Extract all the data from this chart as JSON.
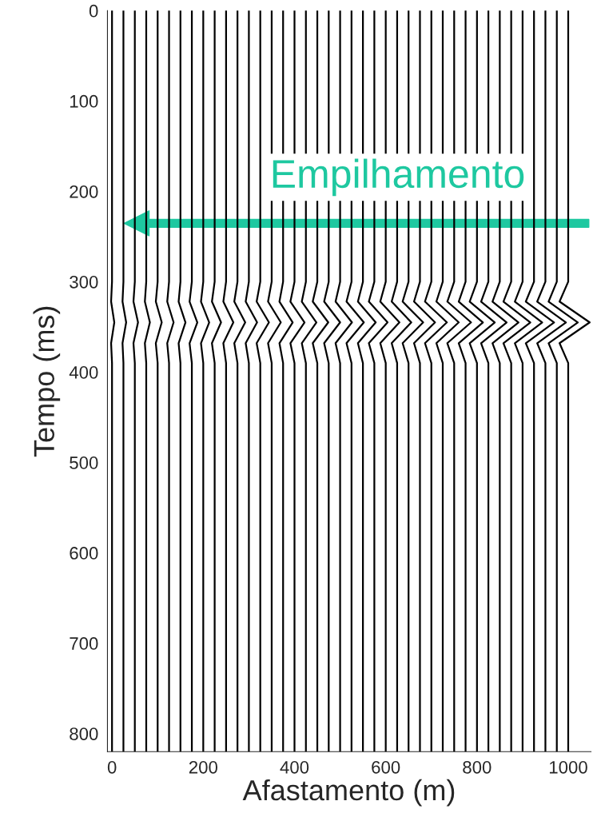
{
  "chart_data": {
    "type": "line",
    "xlabel": "Afastamento (m)",
    "ylabel": "Tempo (ms)",
    "annotations": [
      "Empilhamento"
    ],
    "xlim": [
      -10,
      1050
    ],
    "ylim": [
      820,
      0
    ],
    "xticks": [
      0,
      200,
      400,
      600,
      800,
      1000
    ],
    "yticks": [
      0,
      100,
      200,
      300,
      400,
      500,
      600,
      700,
      800
    ],
    "grid": false,
    "legend": false,
    "series": [
      {
        "color": "#000000",
        "x": [
          0,
          0,
          -2,
          5,
          -2,
          0,
          0
        ],
        "values": [
          0,
          300,
          322,
          345,
          368,
          390,
          820
        ]
      },
      {
        "color": "#000000",
        "x": [
          25,
          25,
          23,
          31,
          23,
          25,
          25
        ],
        "values": [
          0,
          300,
          322,
          345,
          368,
          390,
          820
        ]
      },
      {
        "color": "#000000",
        "x": [
          50,
          50,
          47,
          57,
          47,
          50,
          50
        ],
        "values": [
          0,
          300,
          322,
          345,
          368,
          390,
          820
        ]
      },
      {
        "color": "#000000",
        "x": [
          75,
          75,
          72,
          83,
          72,
          75,
          75
        ],
        "values": [
          0,
          300,
          322,
          345,
          368,
          390,
          820
        ]
      },
      {
        "color": "#000000",
        "x": [
          100,
          100,
          96,
          109,
          96,
          100,
          100
        ],
        "values": [
          0,
          300,
          322,
          345,
          368,
          390,
          820
        ]
      },
      {
        "color": "#000000",
        "x": [
          125,
          125,
          121,
          135,
          121,
          125,
          125
        ],
        "values": [
          0,
          300,
          322,
          345,
          368,
          390,
          820
        ]
      },
      {
        "color": "#000000",
        "x": [
          150,
          150,
          146,
          161,
          146,
          150,
          150
        ],
        "values": [
          0,
          300,
          322,
          345,
          368,
          390,
          820
        ]
      },
      {
        "color": "#000000",
        "x": [
          175,
          175,
          170,
          187,
          170,
          175,
          175
        ],
        "values": [
          0,
          300,
          322,
          345,
          368,
          390,
          820
        ]
      },
      {
        "color": "#000000",
        "x": [
          200,
          200,
          195,
          213,
          195,
          200,
          200
        ],
        "values": [
          0,
          300,
          322,
          345,
          368,
          390,
          820
        ]
      },
      {
        "color": "#000000",
        "x": [
          225,
          225,
          219,
          239,
          219,
          225,
          225
        ],
        "values": [
          0,
          300,
          322,
          345,
          368,
          390,
          820
        ]
      },
      {
        "color": "#000000",
        "x": [
          250,
          250,
          244,
          266,
          244,
          250,
          250
        ],
        "values": [
          0,
          300,
          322,
          345,
          368,
          390,
          820
        ]
      },
      {
        "color": "#000000",
        "x": [
          275,
          275,
          268,
          292,
          268,
          275,
          275
        ],
        "values": [
          0,
          300,
          322,
          345,
          368,
          390,
          820
        ]
      },
      {
        "color": "#000000",
        "x": [
          300,
          300,
          293,
          318,
          293,
          300,
          300
        ],
        "values": [
          0,
          300,
          322,
          345,
          368,
          390,
          820
        ]
      },
      {
        "color": "#000000",
        "x": [
          325,
          325,
          317,
          344,
          317,
          325,
          325
        ],
        "values": [
          0,
          300,
          322,
          345,
          368,
          390,
          820
        ]
      },
      {
        "color": "#000000",
        "x": [
          350,
          350,
          342,
          370,
          342,
          350,
          350
        ],
        "values": [
          0,
          300,
          322,
          345,
          368,
          390,
          820
        ]
      },
      {
        "color": "#000000",
        "x": [
          375,
          375,
          367,
          396,
          367,
          375,
          375
        ],
        "values": [
          0,
          300,
          322,
          345,
          368,
          390,
          820
        ]
      },
      {
        "color": "#000000",
        "x": [
          400,
          400,
          391,
          422,
          391,
          400,
          400
        ],
        "values": [
          0,
          300,
          322,
          345,
          368,
          390,
          820
        ]
      },
      {
        "color": "#000000",
        "x": [
          425,
          425,
          416,
          448,
          416,
          425,
          425
        ],
        "values": [
          0,
          300,
          322,
          345,
          368,
          390,
          820
        ]
      },
      {
        "color": "#000000",
        "x": [
          450,
          450,
          440,
          474,
          440,
          450,
          450
        ],
        "values": [
          0,
          300,
          322,
          345,
          368,
          390,
          820
        ]
      },
      {
        "color": "#000000",
        "x": [
          475,
          475,
          465,
          500,
          465,
          475,
          475
        ],
        "values": [
          0,
          300,
          322,
          345,
          368,
          390,
          820
        ]
      },
      {
        "color": "#000000",
        "x": [
          500,
          500,
          490,
          526,
          490,
          500,
          500
        ],
        "values": [
          0,
          300,
          322,
          345,
          368,
          390,
          820
        ]
      },
      {
        "color": "#000000",
        "x": [
          525,
          525,
          514,
          552,
          514,
          525,
          525
        ],
        "values": [
          0,
          300,
          322,
          345,
          368,
          390,
          820
        ]
      },
      {
        "color": "#000000",
        "x": [
          550,
          550,
          539,
          578,
          539,
          550,
          550
        ],
        "values": [
          0,
          300,
          322,
          345,
          368,
          390,
          820
        ]
      },
      {
        "color": "#000000",
        "x": [
          575,
          575,
          563,
          604,
          563,
          575,
          575
        ],
        "values": [
          0,
          300,
          322,
          345,
          368,
          390,
          820
        ]
      },
      {
        "color": "#000000",
        "x": [
          600,
          600,
          588,
          630,
          588,
          600,
          600
        ],
        "values": [
          0,
          300,
          322,
          345,
          368,
          390,
          820
        ]
      },
      {
        "color": "#000000",
        "x": [
          625,
          625,
          613,
          656,
          613,
          625,
          625
        ],
        "values": [
          0,
          300,
          322,
          345,
          368,
          390,
          820
        ]
      },
      {
        "color": "#000000",
        "x": [
          650,
          650,
          637,
          682,
          637,
          650,
          650
        ],
        "values": [
          0,
          300,
          322,
          345,
          368,
          390,
          820
        ]
      },
      {
        "color": "#000000",
        "x": [
          675,
          675,
          662,
          708,
          662,
          675,
          675
        ],
        "values": [
          0,
          300,
          322,
          345,
          368,
          390,
          820
        ]
      },
      {
        "color": "#000000",
        "x": [
          700,
          700,
          686,
          734,
          686,
          700,
          700
        ],
        "values": [
          0,
          300,
          322,
          345,
          368,
          390,
          820
        ]
      },
      {
        "color": "#000000",
        "x": [
          725,
          725,
          711,
          760,
          711,
          725,
          725
        ],
        "values": [
          0,
          300,
          322,
          345,
          368,
          390,
          820
        ]
      },
      {
        "color": "#000000",
        "x": [
          750,
          750,
          735,
          787,
          735,
          750,
          750
        ],
        "values": [
          0,
          300,
          322,
          345,
          368,
          390,
          820
        ]
      },
      {
        "color": "#000000",
        "x": [
          775,
          775,
          760,
          813,
          760,
          775,
          775
        ],
        "values": [
          0,
          300,
          322,
          345,
          368,
          390,
          820
        ]
      },
      {
        "color": "#000000",
        "x": [
          800,
          800,
          784,
          839,
          784,
          800,
          800
        ],
        "values": [
          0,
          300,
          322,
          345,
          368,
          390,
          820
        ]
      },
      {
        "color": "#000000",
        "x": [
          825,
          825,
          809,
          865,
          809,
          825,
          825
        ],
        "values": [
          0,
          300,
          322,
          345,
          368,
          390,
          820
        ]
      },
      {
        "color": "#000000",
        "x": [
          850,
          850,
          834,
          891,
          834,
          850,
          850
        ],
        "values": [
          0,
          300,
          322,
          345,
          368,
          390,
          820
        ]
      },
      {
        "color": "#000000",
        "x": [
          875,
          875,
          858,
          917,
          858,
          875,
          875
        ],
        "values": [
          0,
          300,
          322,
          345,
          368,
          390,
          820
        ]
      },
      {
        "color": "#000000",
        "x": [
          900,
          900,
          883,
          943,
          883,
          900,
          900
        ],
        "values": [
          0,
          300,
          322,
          345,
          368,
          390,
          820
        ]
      },
      {
        "color": "#000000",
        "x": [
          925,
          925,
          907,
          969,
          907,
          925,
          925
        ],
        "values": [
          0,
          300,
          322,
          345,
          368,
          390,
          820
        ]
      },
      {
        "color": "#000000",
        "x": [
          950,
          950,
          932,
          995,
          932,
          950,
          950
        ],
        "values": [
          0,
          300,
          322,
          345,
          368,
          390,
          820
        ]
      },
      {
        "color": "#000000",
        "x": [
          975,
          975,
          957,
          1021,
          957,
          975,
          975
        ],
        "values": [
          0,
          300,
          322,
          345,
          368,
          390,
          820
        ]
      },
      {
        "color": "#000000",
        "x": [
          1000,
          1000,
          981,
          1047,
          981,
          1000,
          1000
        ],
        "values": [
          0,
          300,
          322,
          345,
          368,
          390,
          820
        ]
      }
    ]
  }
}
